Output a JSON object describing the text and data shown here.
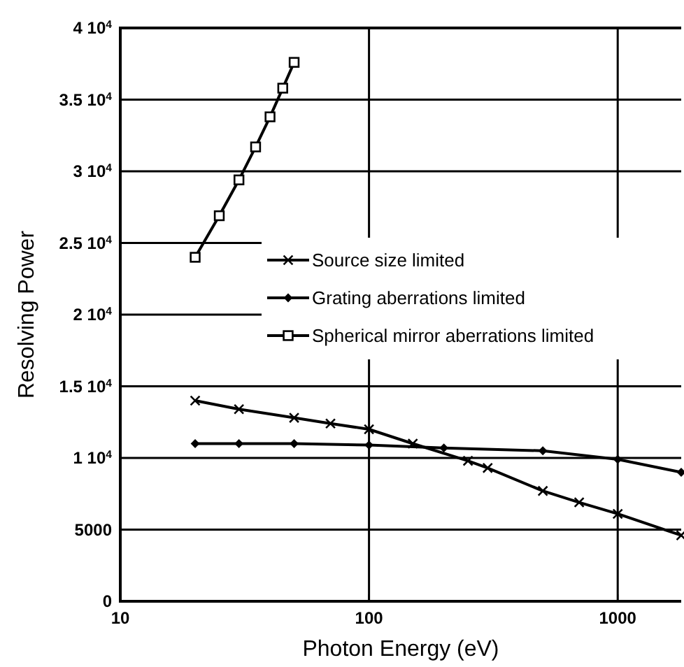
{
  "chart_data": {
    "type": "line",
    "xlabel": "Photon Energy  (eV)",
    "ylabel": "Resolving Power",
    "log": "x",
    "xlim": [
      10,
      1800
    ],
    "xticks": [
      10,
      100,
      1000
    ],
    "ylim": [
      0,
      40000
    ],
    "yticks": [
      0,
      5000,
      {
        "value": 10000,
        "label": "1 10$^{4}$"
      },
      {
        "value": 15000,
        "label": "1.5 10$^{4}$"
      },
      {
        "value": 20000,
        "label": "2 10$^{4}$"
      },
      {
        "value": 25000,
        "label": "2.5 10$^{4}$"
      },
      {
        "value": 30000,
        "label": "3 10$^{4}$"
      },
      {
        "value": 35000,
        "label": "3.5 10$^{4}$"
      },
      {
        "value": 40000,
        "label": "4 10$^{4}$"
      }
    ],
    "grid": true,
    "legend": "right",
    "series": [
      {
        "name": "Source size limited",
        "color": "#000000",
        "marker": "cross",
        "x": [
          20,
          30,
          50,
          70,
          100,
          150,
          250,
          300,
          500,
          700,
          1000,
          1800
        ],
        "values": [
          14000,
          13400,
          12800,
          12400,
          12000,
          11000,
          9800,
          9300,
          7700,
          6900,
          6100,
          4600
        ]
      },
      {
        "name": "Grating aberrations limited",
        "color": "#000000",
        "marker": "diamond",
        "x": [
          20,
          30,
          50,
          100,
          200,
          500,
          1000,
          1800
        ],
        "values": [
          11000,
          11000,
          11000,
          10900,
          10700,
          10500,
          9900,
          9000
        ]
      },
      {
        "name": "Spherical mirror aberrations limited",
        "color": "#000000",
        "marker": "square",
        "x": [
          20,
          25,
          30,
          35,
          40,
          45,
          50
        ],
        "values": [
          24000,
          26900,
          29400,
          31700,
          33800,
          35800,
          37600
        ]
      }
    ]
  }
}
